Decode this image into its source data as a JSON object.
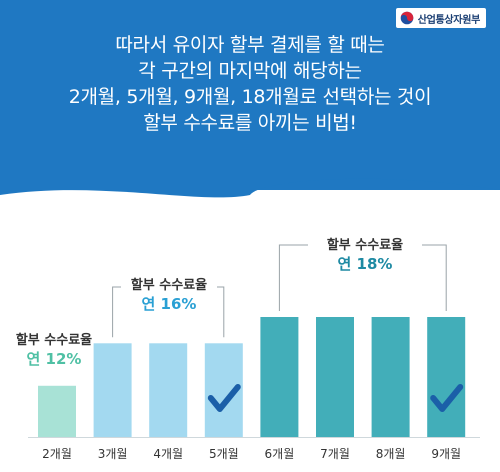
{
  "brand": {
    "logo_text": "산업통상자원부",
    "logo_icon": "taegeuk-emblem-icon"
  },
  "headline": {
    "lines": [
      "따라서 유이자 할부 결제를 할 때는",
      "각 구간의 마지막에 해당하는",
      "2개월, 5개월, 9개월, 18개월로 선택하는 것이",
      "할부 수수료를 아끼는 비법!"
    ]
  },
  "chart_data": {
    "type": "bar",
    "categories": [
      "2개월",
      "3개월",
      "4개월",
      "5개월",
      "6개월",
      "7개월",
      "8개월",
      "9개월"
    ],
    "values": [
      12,
      16,
      16,
      16,
      18,
      18,
      18,
      18
    ],
    "ylabel": "",
    "ylim": [
      0,
      18
    ],
    "colors": [
      "#a8e2d6",
      "#a3d9f0",
      "#a3d9f0",
      "#a3d9f0",
      "#42aeb9",
      "#42aeb9",
      "#42aeb9",
      "#42aeb9"
    ],
    "checkmark_categories": [
      "5개월",
      "9개월"
    ],
    "checkmark_icon": "checkmark-icon",
    "groups": [
      {
        "title": "할부 수수료율",
        "rate_label": "연 12%",
        "rate_color": "#4fc0a4"
      },
      {
        "title": "할부 수수료율",
        "rate_label": "연 16%",
        "rate_color": "#2aa0d4"
      },
      {
        "title": "할부 수수료율",
        "rate_label": "연 18%",
        "rate_color": "#1e8aa3"
      }
    ]
  }
}
